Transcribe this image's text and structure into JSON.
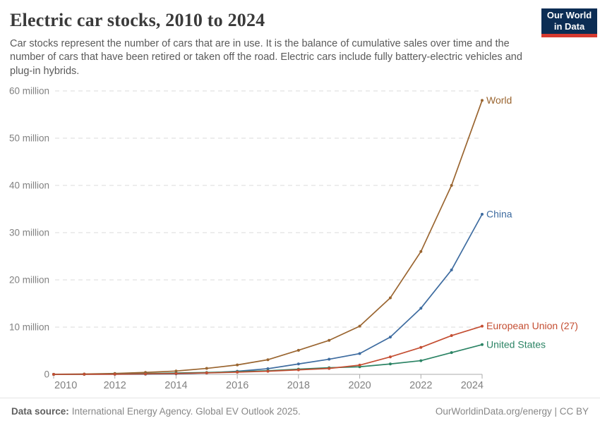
{
  "header": {
    "title": "Electric car stocks, 2010 to 2024",
    "subtitle": "Car stocks represent the number of cars that are in use. It is the balance of cumulative sales over time and the number of cars that have been retired or taken off the road. Electric cars include fully battery-electric vehicles and plug-in hybrids.",
    "logo": {
      "line1": "Our World",
      "line2": "in Data",
      "bg_color": "#0c2d54",
      "accent_color": "#d63a30"
    }
  },
  "chart_data": {
    "type": "line",
    "title": "Electric car stocks, 2010 to 2024",
    "y_unit": "million",
    "x": [
      2010,
      2011,
      2012,
      2013,
      2014,
      2015,
      2016,
      2017,
      2018,
      2019,
      2020,
      2021,
      2022,
      2023,
      2024
    ],
    "series": [
      {
        "name": "World",
        "color": "#9a6530",
        "values": [
          0.02,
          0.07,
          0.19,
          0.41,
          0.7,
          1.26,
          2.0,
          3.1,
          5.1,
          7.2,
          10.2,
          16.2,
          26.0,
          40.0,
          58.0
        ]
      },
      {
        "name": "China",
        "color": "#3e6ca0",
        "values": [
          0.0,
          0.01,
          0.02,
          0.04,
          0.11,
          0.31,
          0.65,
          1.2,
          2.2,
          3.2,
          4.4,
          7.9,
          14.0,
          22.1,
          33.9
        ]
      },
      {
        "name": "European Union (27)",
        "color": "#c44e32",
        "values": [
          0.0,
          0.01,
          0.04,
          0.1,
          0.18,
          0.31,
          0.46,
          0.66,
          0.95,
          1.25,
          1.95,
          3.7,
          5.7,
          8.2,
          10.2
        ]
      },
      {
        "name": "United States",
        "color": "#2c8465",
        "values": [
          0.0,
          0.02,
          0.07,
          0.17,
          0.29,
          0.4,
          0.56,
          0.76,
          1.1,
          1.4,
          1.6,
          2.2,
          2.9,
          4.6,
          6.3
        ]
      }
    ],
    "paint_order": [
      0,
      1,
      3,
      2
    ],
    "ylim": [
      0,
      60
    ],
    "y_ticks": [
      {
        "value": 0,
        "label": "0"
      },
      {
        "value": 10,
        "label": "10 million"
      },
      {
        "value": 20,
        "label": "20 million"
      },
      {
        "value": 30,
        "label": "30 million"
      },
      {
        "value": 40,
        "label": "40 million"
      },
      {
        "value": 50,
        "label": "50 million"
      },
      {
        "value": 60,
        "label": "60 million"
      }
    ],
    "x_ticks": [
      2010,
      2012,
      2014,
      2016,
      2018,
      2020,
      2022,
      2024
    ],
    "grid": "horizontal-dashed",
    "legend_position": "end-of-line-labels"
  },
  "footer": {
    "source_label": "Data source:",
    "source_text": "International Energy Agency. Global EV Outlook 2025.",
    "rights": "OurWorldinData.org/energy | CC BY"
  }
}
